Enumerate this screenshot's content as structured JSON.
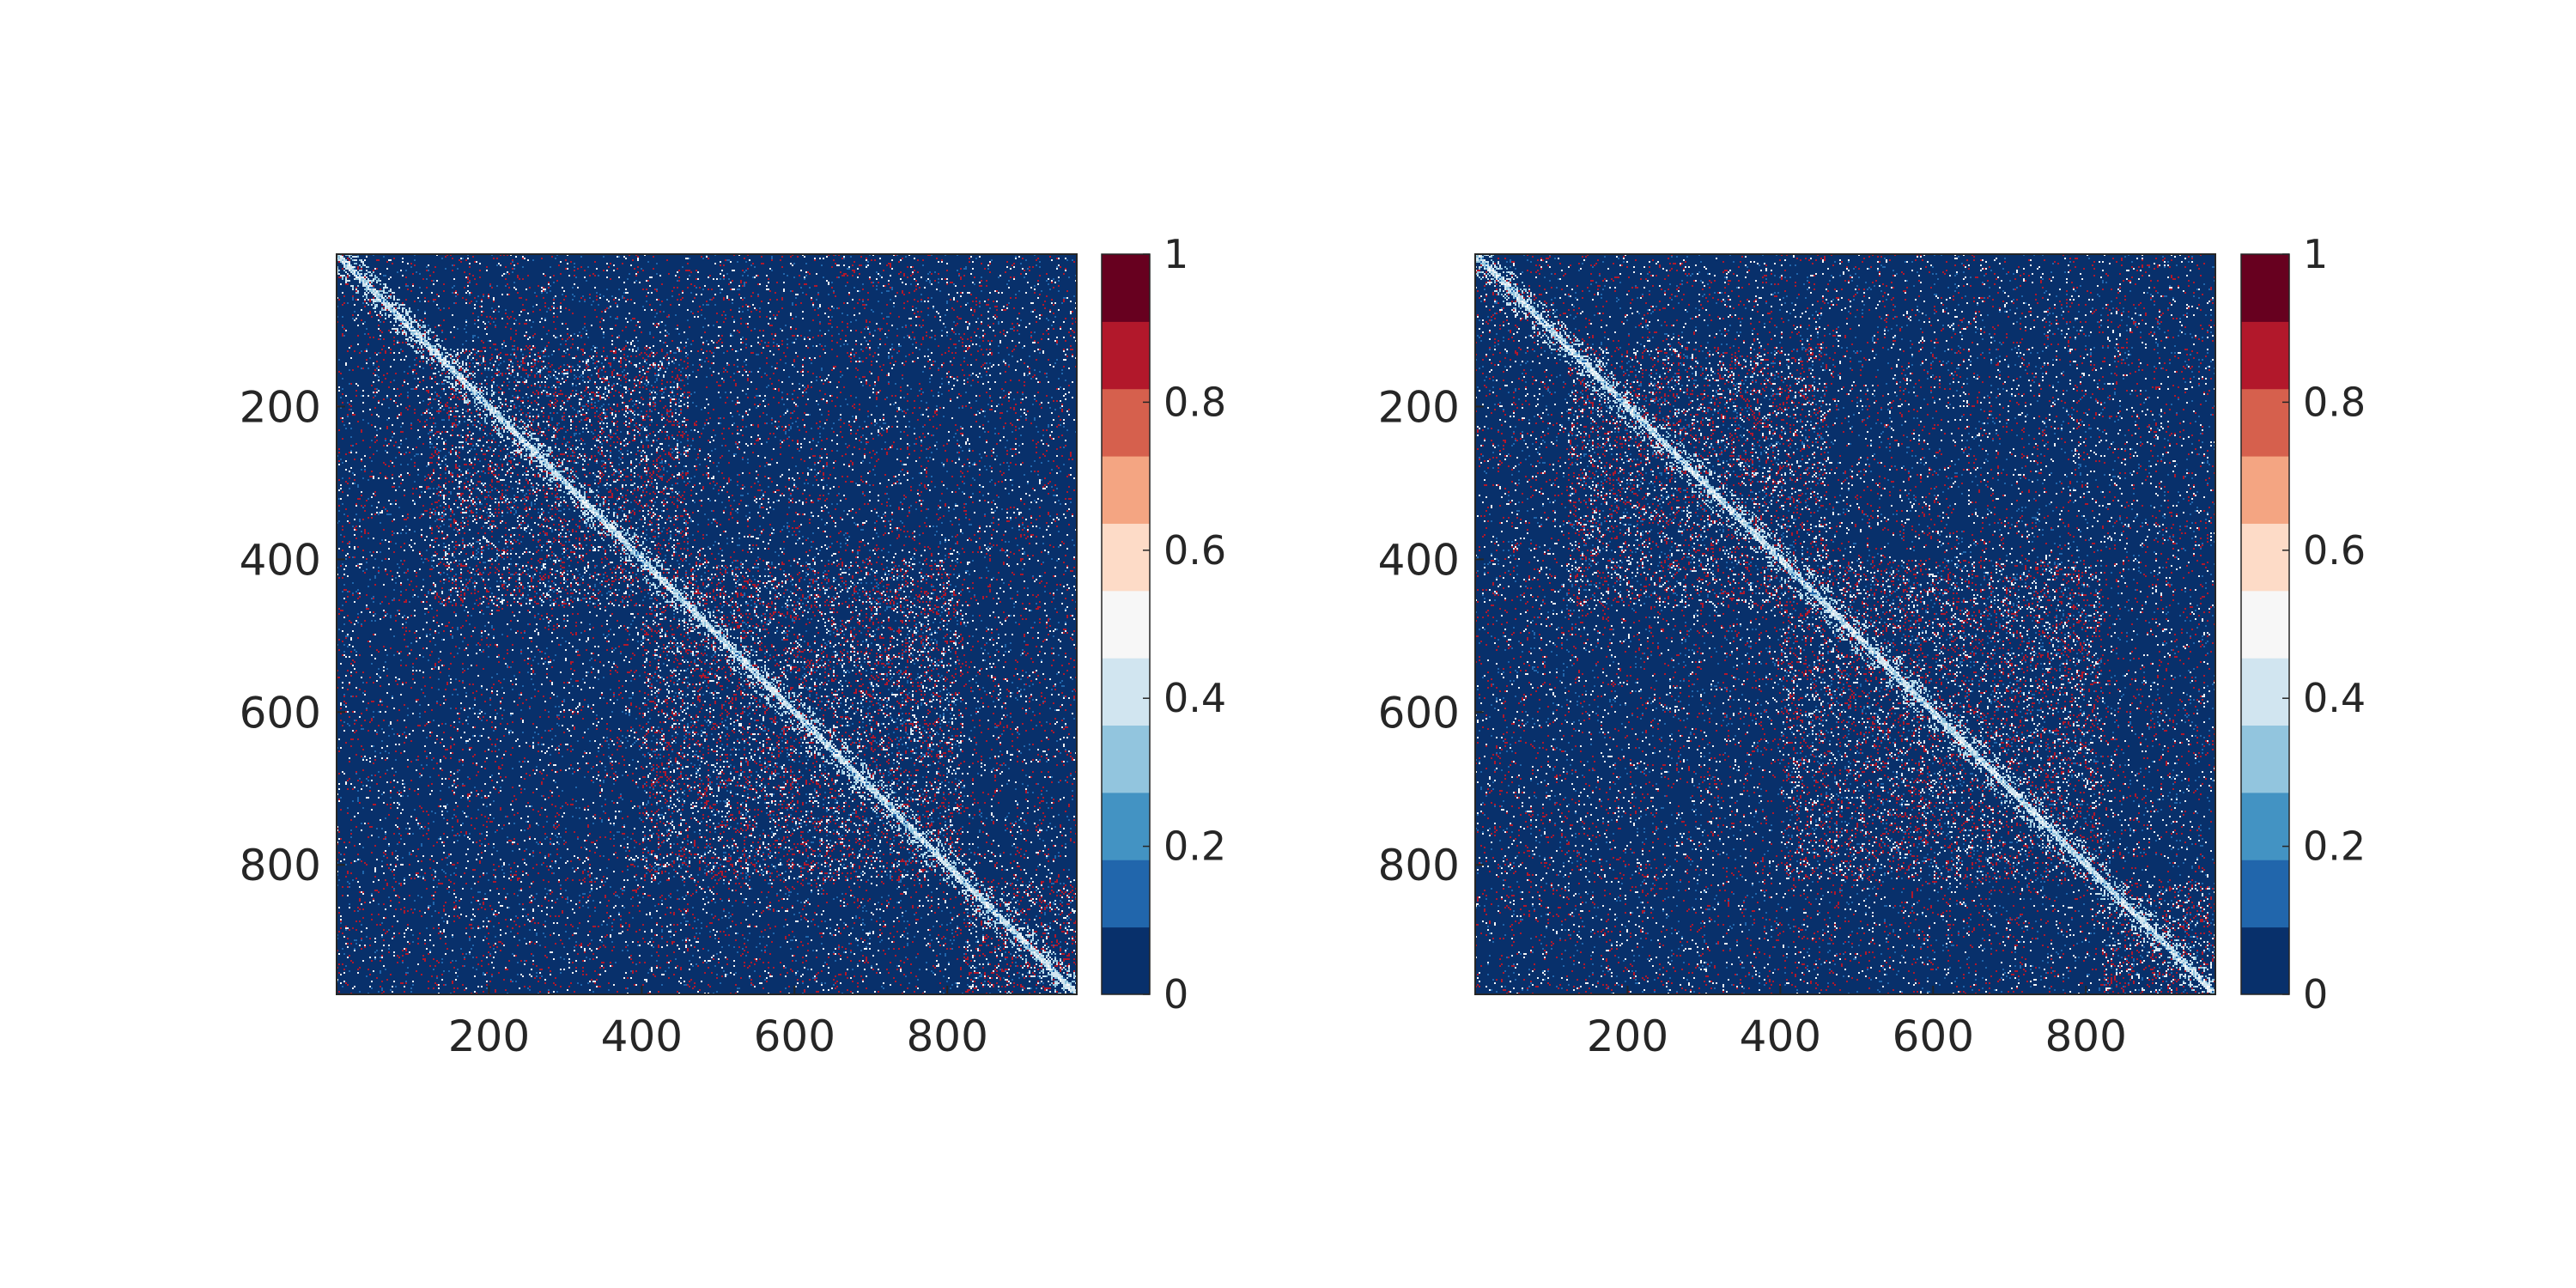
{
  "chart_data": [
    {
      "type": "heatmap",
      "title": "",
      "xlabel": "",
      "ylabel": "",
      "matrix_size": 969,
      "x_ticks": [
        200,
        400,
        600,
        800
      ],
      "y_ticks": [
        200,
        400,
        600,
        800
      ],
      "xlim": [
        1,
        969
      ],
      "ylim": [
        1,
        969
      ],
      "colorbar": {
        "ticks": [
          0,
          0.2,
          0.4,
          0.6,
          0.8,
          1
        ],
        "tick_labels": [
          "0",
          "0.2",
          "0.4",
          "0.6",
          "0.8",
          "1"
        ],
        "range": [
          0,
          1
        ],
        "levels": 11,
        "colors": [
          "#08306b",
          "#2166ac",
          "#4393c3",
          "#92c5de",
          "#d1e5f0",
          "#f7f7f7",
          "#fddbc7",
          "#f4a582",
          "#d6604d",
          "#b2182b",
          "#67001f"
        ]
      },
      "dominant_value": 0,
      "diagonal_band": "light-blue/white values (~0.3-0.5) along the main diagonal",
      "sparse_values": "scattered red (~0.8-0.9) and white entries off-diagonal",
      "blocks": [
        [
          120,
          460
        ],
        [
          400,
          820
        ],
        [
          820,
          969
        ]
      ]
    },
    {
      "type": "heatmap",
      "title": "",
      "xlabel": "",
      "ylabel": "",
      "matrix_size": 969,
      "x_ticks": [
        200,
        400,
        600,
        800
      ],
      "y_ticks": [
        200,
        400,
        600,
        800
      ],
      "xlim": [
        1,
        969
      ],
      "ylim": [
        1,
        969
      ],
      "colorbar": {
        "ticks": [
          0,
          0.2,
          0.4,
          0.6,
          0.8,
          1
        ],
        "tick_labels": [
          "0",
          "0.2",
          "0.4",
          "0.6",
          "0.8",
          "1"
        ],
        "range": [
          0,
          1
        ],
        "levels": 11,
        "colors": [
          "#08306b",
          "#2166ac",
          "#4393c3",
          "#92c5de",
          "#d1e5f0",
          "#f7f7f7",
          "#fddbc7",
          "#f4a582",
          "#d6604d",
          "#b2182b",
          "#67001f"
        ]
      },
      "dominant_value": 0,
      "diagonal_band": "light-blue/white values (~0.3-0.5) along the main diagonal",
      "sparse_values": "scattered red (~0.8-0.9) and white entries off-diagonal",
      "blocks": [
        [
          120,
          460
        ],
        [
          400,
          820
        ],
        [
          820,
          969
        ]
      ]
    }
  ]
}
